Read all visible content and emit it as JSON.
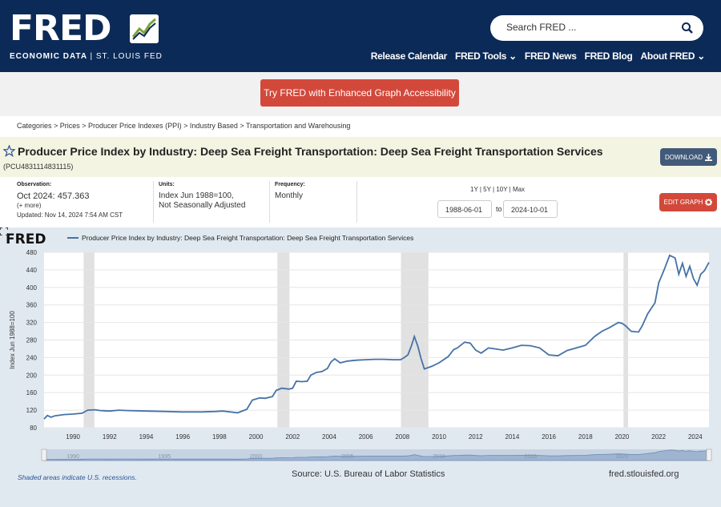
{
  "header": {
    "logo_text": "FRED",
    "logo_sub_bold": "ECONOMIC DATA",
    "logo_sub_rest": "| ST. LOUIS FED",
    "search_placeholder": "Search FRED ...",
    "nav": [
      "Release Calendar",
      "FRED Tools ⌄",
      "FRED News",
      "FRED Blog",
      "About FRED ⌄"
    ]
  },
  "accessibility_button": "Try FRED with Enhanced Graph Accessibility",
  "breadcrumb": "Categories > Prices > Producer Price Indexes (PPI) > Industry Based > Transportation and Warehousing",
  "series": {
    "title": "Producer Price Index by Industry: Deep Sea Freight Transportation: Deep Sea Freight Transportation Services",
    "id": "(PCU4831114831115)",
    "download_label": "DOWNLOAD"
  },
  "meta": {
    "observation_label": "Observation:",
    "observation_date": "Oct 2024:",
    "observation_value": "457.363",
    "more": "(+ more)",
    "updated": "Updated: Nov 14, 2024 7:54 AM CST",
    "units_label": "Units:",
    "units_line1": "Index Jun 1988=100,",
    "units_line2": "Not Seasonally Adjusted",
    "frequency_label": "Frequency:",
    "frequency": "Monthly"
  },
  "range": {
    "links": "1Y | 5Y | 10Y | Max",
    "start": "1988-06-01",
    "to": "to",
    "end": "2024-10-01",
    "edit_label": "EDIT GRAPH"
  },
  "graph": {
    "small_logo": "FRED",
    "source": "Source: U.S. Bureau of Labor Statistics",
    "url": "fred.stlouisfed.org",
    "shade_note": "Shaded areas indicate U.S. recessions."
  },
  "chart_data": {
    "type": "line",
    "title": "",
    "xlabel": "",
    "ylabel": "Index Jun 1988=100",
    "xlim": [
      1988.42,
      2024.75
    ],
    "ylim": [
      80,
      480
    ],
    "yticks": [
      80,
      120,
      160,
      200,
      240,
      280,
      320,
      360,
      400,
      440,
      480
    ],
    "xticks": [
      1990,
      1992,
      1994,
      1996,
      1998,
      2000,
      2002,
      2004,
      2006,
      2008,
      2010,
      2012,
      2014,
      2016,
      2018,
      2020,
      2022,
      2024
    ],
    "recessions": [
      [
        1990.58,
        1991.17
      ],
      [
        2001.17,
        2001.83
      ],
      [
        2007.92,
        2009.42
      ],
      [
        2020.08,
        2020.33
      ]
    ],
    "series": [
      {
        "name": "Producer Price Index by Industry: Deep Sea Freight Transportation: Deep Sea Freight Transportation Services",
        "color": "#4572a7",
        "points": [
          [
            1988.42,
            100
          ],
          [
            1988.6,
            108
          ],
          [
            1988.8,
            104
          ],
          [
            1989.0,
            107
          ],
          [
            1989.5,
            110
          ],
          [
            1990.0,
            111
          ],
          [
            1990.5,
            113
          ],
          [
            1990.8,
            120
          ],
          [
            1991.2,
            121
          ],
          [
            1991.5,
            119
          ],
          [
            1992.0,
            118
          ],
          [
            1992.5,
            120
          ],
          [
            1993.0,
            119
          ],
          [
            1994.0,
            118
          ],
          [
            1995.0,
            117
          ],
          [
            1996.0,
            116
          ],
          [
            1997.0,
            116
          ],
          [
            1997.8,
            117
          ],
          [
            1998.2,
            118
          ],
          [
            1998.6,
            116
          ],
          [
            1999.0,
            114
          ],
          [
            1999.5,
            122
          ],
          [
            1999.8,
            143
          ],
          [
            2000.2,
            148
          ],
          [
            2000.5,
            147
          ],
          [
            2000.9,
            151
          ],
          [
            2001.1,
            165
          ],
          [
            2001.4,
            170
          ],
          [
            2001.8,
            168
          ],
          [
            2002.0,
            170
          ],
          [
            2002.2,
            186
          ],
          [
            2002.5,
            185
          ],
          [
            2002.8,
            186
          ],
          [
            2003.0,
            200
          ],
          [
            2003.3,
            206
          ],
          [
            2003.6,
            208
          ],
          [
            2003.9,
            215
          ],
          [
            2004.1,
            230
          ],
          [
            2004.3,
            237
          ],
          [
            2004.6,
            228
          ],
          [
            2005.0,
            232
          ],
          [
            2005.5,
            234
          ],
          [
            2006.0,
            235
          ],
          [
            2006.5,
            236
          ],
          [
            2007.0,
            236
          ],
          [
            2007.5,
            235
          ],
          [
            2007.9,
            235
          ],
          [
            2008.1,
            240
          ],
          [
            2008.3,
            246
          ],
          [
            2008.5,
            268
          ],
          [
            2008.65,
            288
          ],
          [
            2008.85,
            265
          ],
          [
            2009.0,
            240
          ],
          [
            2009.2,
            214
          ],
          [
            2009.6,
            220
          ],
          [
            2010.0,
            228
          ],
          [
            2010.5,
            242
          ],
          [
            2010.8,
            258
          ],
          [
            2011.0,
            262
          ],
          [
            2011.4,
            275
          ],
          [
            2011.7,
            273
          ],
          [
            2012.0,
            257
          ],
          [
            2012.3,
            250
          ],
          [
            2012.7,
            262
          ],
          [
            2013.0,
            260
          ],
          [
            2013.5,
            257
          ],
          [
            2014.0,
            262
          ],
          [
            2014.5,
            268
          ],
          [
            2015.0,
            267
          ],
          [
            2015.5,
            262
          ],
          [
            2016.0,
            246
          ],
          [
            2016.5,
            244
          ],
          [
            2017.0,
            256
          ],
          [
            2017.5,
            262
          ],
          [
            2018.0,
            268
          ],
          [
            2018.5,
            288
          ],
          [
            2018.9,
            300
          ],
          [
            2019.3,
            308
          ],
          [
            2019.8,
            320
          ],
          [
            2020.0,
            318
          ],
          [
            2020.2,
            312
          ],
          [
            2020.5,
            300
          ],
          [
            2020.9,
            298
          ],
          [
            2021.1,
            312
          ],
          [
            2021.4,
            340
          ],
          [
            2021.8,
            365
          ],
          [
            2022.0,
            410
          ],
          [
            2022.3,
            440
          ],
          [
            2022.6,
            473
          ],
          [
            2022.9,
            467
          ],
          [
            2023.1,
            430
          ],
          [
            2023.3,
            455
          ],
          [
            2023.5,
            425
          ],
          [
            2023.7,
            448
          ],
          [
            2023.9,
            420
          ],
          [
            2024.1,
            405
          ],
          [
            2024.3,
            430
          ],
          [
            2024.5,
            438
          ],
          [
            2024.75,
            457
          ]
        ]
      }
    ]
  }
}
